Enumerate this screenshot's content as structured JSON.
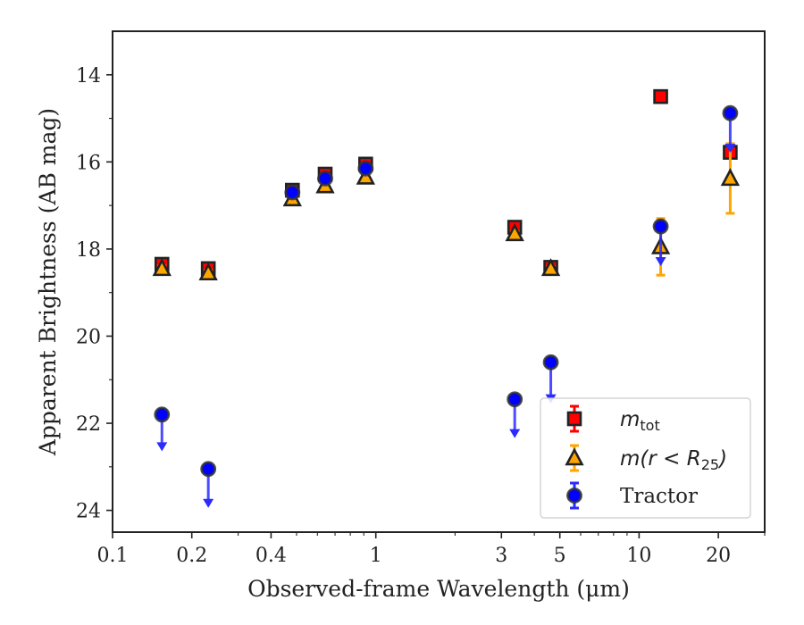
{
  "chart_data": {
    "type": "scatter",
    "title": "",
    "xlabel": "Observed-frame Wavelength (μm)",
    "ylabel": "Apparent Brightness (AB mag)",
    "xscale": "log",
    "xlim": [
      0.1,
      30
    ],
    "ylim": [
      24.5,
      13
    ],
    "y_inverted": true,
    "xticks": [
      {
        "value": 0.1,
        "label": "0.1"
      },
      {
        "value": 0.2,
        "label": "0.2"
      },
      {
        "value": 0.4,
        "label": "0.4"
      },
      {
        "value": 1,
        "label": "1"
      },
      {
        "value": 3,
        "label": "3"
      },
      {
        "value": 5,
        "label": "5"
      },
      {
        "value": 10,
        "label": "10"
      },
      {
        "value": 20,
        "label": "20"
      }
    ],
    "yticks": [
      {
        "value": 14,
        "label": "14"
      },
      {
        "value": 16,
        "label": "16"
      },
      {
        "value": 18,
        "label": "18"
      },
      {
        "value": 20,
        "label": "20"
      },
      {
        "value": 22,
        "label": "22"
      },
      {
        "value": 24,
        "label": "24"
      }
    ],
    "grid": false,
    "legend_position": "lower-right",
    "series": [
      {
        "key": "mtot",
        "name": "m_tot",
        "marker": "square",
        "face_color": "#ff0000",
        "edge_color": "#222222",
        "err_color": "#ff0000",
        "points": [
          {
            "x": 0.154,
            "y": 18.35,
            "err": 0.08
          },
          {
            "x": 0.231,
            "y": 18.45,
            "err": 0.08
          },
          {
            "x": 0.482,
            "y": 16.65,
            "err": 0.06
          },
          {
            "x": 0.642,
            "y": 16.28,
            "err": 0.06
          },
          {
            "x": 0.915,
            "y": 16.05,
            "err": 0.06
          },
          {
            "x": 3.37,
            "y": 17.5,
            "err": 0.06
          },
          {
            "x": 4.62,
            "y": 18.42,
            "err": 0.06
          },
          {
            "x": 12.08,
            "y": 14.5,
            "err": 0.05
          },
          {
            "x": 22.19,
            "y": 15.78,
            "err": 0.05
          }
        ]
      },
      {
        "key": "m25",
        "name": "m(r < R25)",
        "marker": "triangle",
        "face_color": "#ffa500",
        "edge_color": "#222222",
        "err_color": "#ffa500",
        "points": [
          {
            "x": 0.154,
            "y": 18.45,
            "err": 0.06
          },
          {
            "x": 0.231,
            "y": 18.55,
            "err": 0.06
          },
          {
            "x": 0.482,
            "y": 16.85,
            "err": 0.05
          },
          {
            "x": 0.642,
            "y": 16.55,
            "err": 0.05
          },
          {
            "x": 0.915,
            "y": 16.35,
            "err": 0.05
          },
          {
            "x": 3.37,
            "y": 17.65,
            "err": 0.05
          },
          {
            "x": 4.62,
            "y": 18.45,
            "err": 0.05
          },
          {
            "x": 12.08,
            "y": 17.95,
            "err": 0.65
          },
          {
            "x": 22.19,
            "y": 16.38,
            "err": 0.8
          }
        ]
      },
      {
        "key": "tractor",
        "name": "Tractor",
        "marker": "circle",
        "face_color": "#0000ff",
        "edge_color": "#333333",
        "err_color": "#2b2bff",
        "points": [
          {
            "x": 0.154,
            "y": 21.8,
            "upper_limit": true,
            "arrow_to": 22.6
          },
          {
            "x": 0.231,
            "y": 23.05,
            "upper_limit": true,
            "arrow_to": 23.9
          },
          {
            "x": 0.482,
            "y": 16.7,
            "err": 0.05
          },
          {
            "x": 0.642,
            "y": 16.38,
            "err": 0.05
          },
          {
            "x": 0.915,
            "y": 16.15,
            "err": 0.05
          },
          {
            "x": 3.37,
            "y": 21.45,
            "upper_limit": true,
            "arrow_to": 22.3
          },
          {
            "x": 4.62,
            "y": 20.6,
            "upper_limit": true,
            "arrow_to": 21.5
          },
          {
            "x": 12.08,
            "y": 17.48,
            "upper_limit": true,
            "arrow_to": 18.35
          },
          {
            "x": 22.19,
            "y": 14.88,
            "upper_limit": true,
            "arrow_to": 15.75
          }
        ]
      }
    ]
  },
  "legend": {
    "entries": [
      {
        "key": "mtot",
        "label_base": "m",
        "label_sub": "tot",
        "label_tail": ""
      },
      {
        "key": "m25",
        "label_base": "m(r < R",
        "label_sub": "25",
        "label_tail": ")"
      },
      {
        "key": "tractor",
        "label_base": "Tractor",
        "label_sub": "",
        "label_tail": ""
      }
    ]
  }
}
